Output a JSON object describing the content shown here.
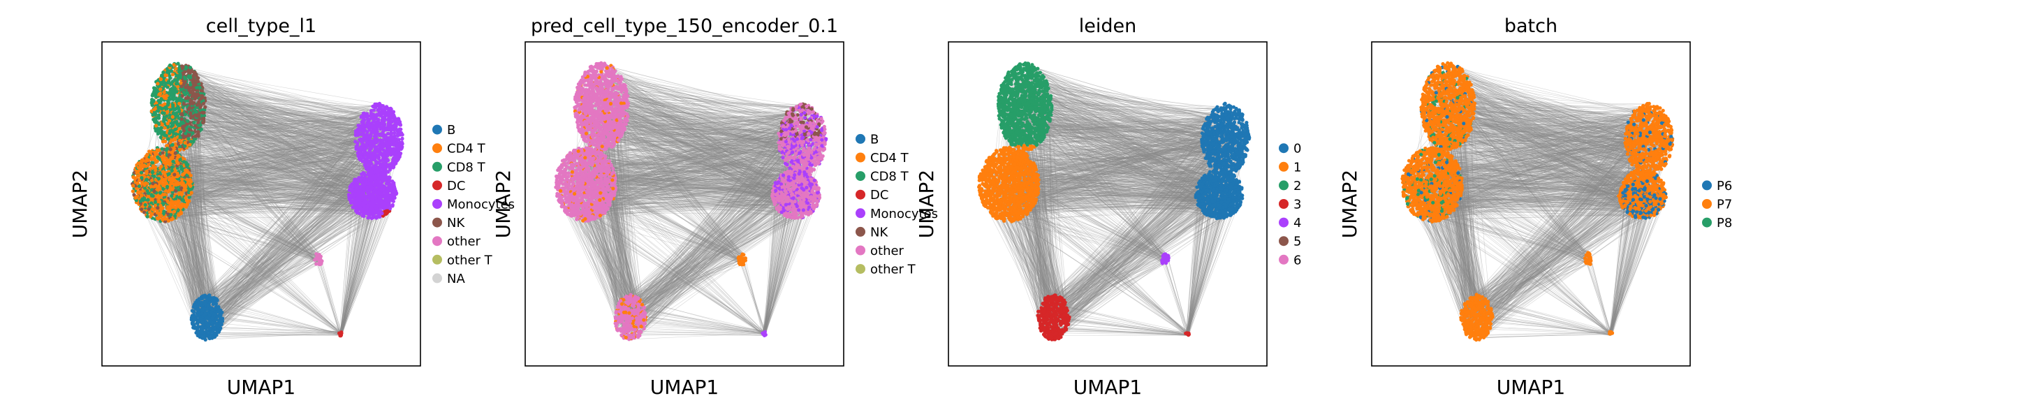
{
  "chart_data": [
    {
      "type": "scatter",
      "title": "cell_type_l1",
      "xlabel": "UMAP1",
      "ylabel": "UMAP2",
      "legend_placement": "right",
      "grid": false,
      "legend": [
        {
          "label": "B",
          "color": "#1f77b4"
        },
        {
          "label": "CD4 T",
          "color": "#ff7f0e"
        },
        {
          "label": "CD8 T",
          "color": "#279e68"
        },
        {
          "label": "DC",
          "color": "#d62728"
        },
        {
          "label": "Monocytes",
          "color": "#aa40fc"
        },
        {
          "label": "NK",
          "color": "#8c564b"
        },
        {
          "label": "other",
          "color": "#e377c2"
        },
        {
          "label": "other T",
          "color": "#b5bd61"
        },
        {
          "label": "NA",
          "color": "#d3d3d3"
        }
      ]
    },
    {
      "type": "scatter",
      "title": "pred_cell_type_150_encoder_0.1",
      "xlabel": "UMAP1",
      "ylabel": "UMAP2",
      "legend_placement": "right",
      "grid": false,
      "legend": [
        {
          "label": "B",
          "color": "#1f77b4"
        },
        {
          "label": "CD4 T",
          "color": "#ff7f0e"
        },
        {
          "label": "CD8 T",
          "color": "#279e68"
        },
        {
          "label": "DC",
          "color": "#d62728"
        },
        {
          "label": "Monocytes",
          "color": "#aa40fc"
        },
        {
          "label": "NK",
          "color": "#8c564b"
        },
        {
          "label": "other",
          "color": "#e377c2"
        },
        {
          "label": "other T",
          "color": "#b5bd61"
        }
      ]
    },
    {
      "type": "scatter",
      "title": "leiden",
      "xlabel": "UMAP1",
      "ylabel": "UMAP2",
      "legend_placement": "right",
      "grid": false,
      "legend": [
        {
          "label": "0",
          "color": "#1f77b4"
        },
        {
          "label": "1",
          "color": "#ff7f0e"
        },
        {
          "label": "2",
          "color": "#279e68"
        },
        {
          "label": "3",
          "color": "#d62728"
        },
        {
          "label": "4",
          "color": "#aa40fc"
        },
        {
          "label": "5",
          "color": "#8c564b"
        },
        {
          "label": "6",
          "color": "#e377c2"
        }
      ]
    },
    {
      "type": "scatter",
      "title": "batch",
      "xlabel": "UMAP1",
      "ylabel": "UMAP2",
      "legend_placement": "right",
      "grid": false,
      "legend": [
        {
          "label": "P6",
          "color": "#1f77b4"
        },
        {
          "label": "P7",
          "color": "#ff7f0e"
        },
        {
          "label": "P8",
          "color": "#279e68"
        }
      ]
    }
  ],
  "colors": {
    "edges": "#8a8a8a",
    "frame": "#000000",
    "background": "#ffffff"
  }
}
